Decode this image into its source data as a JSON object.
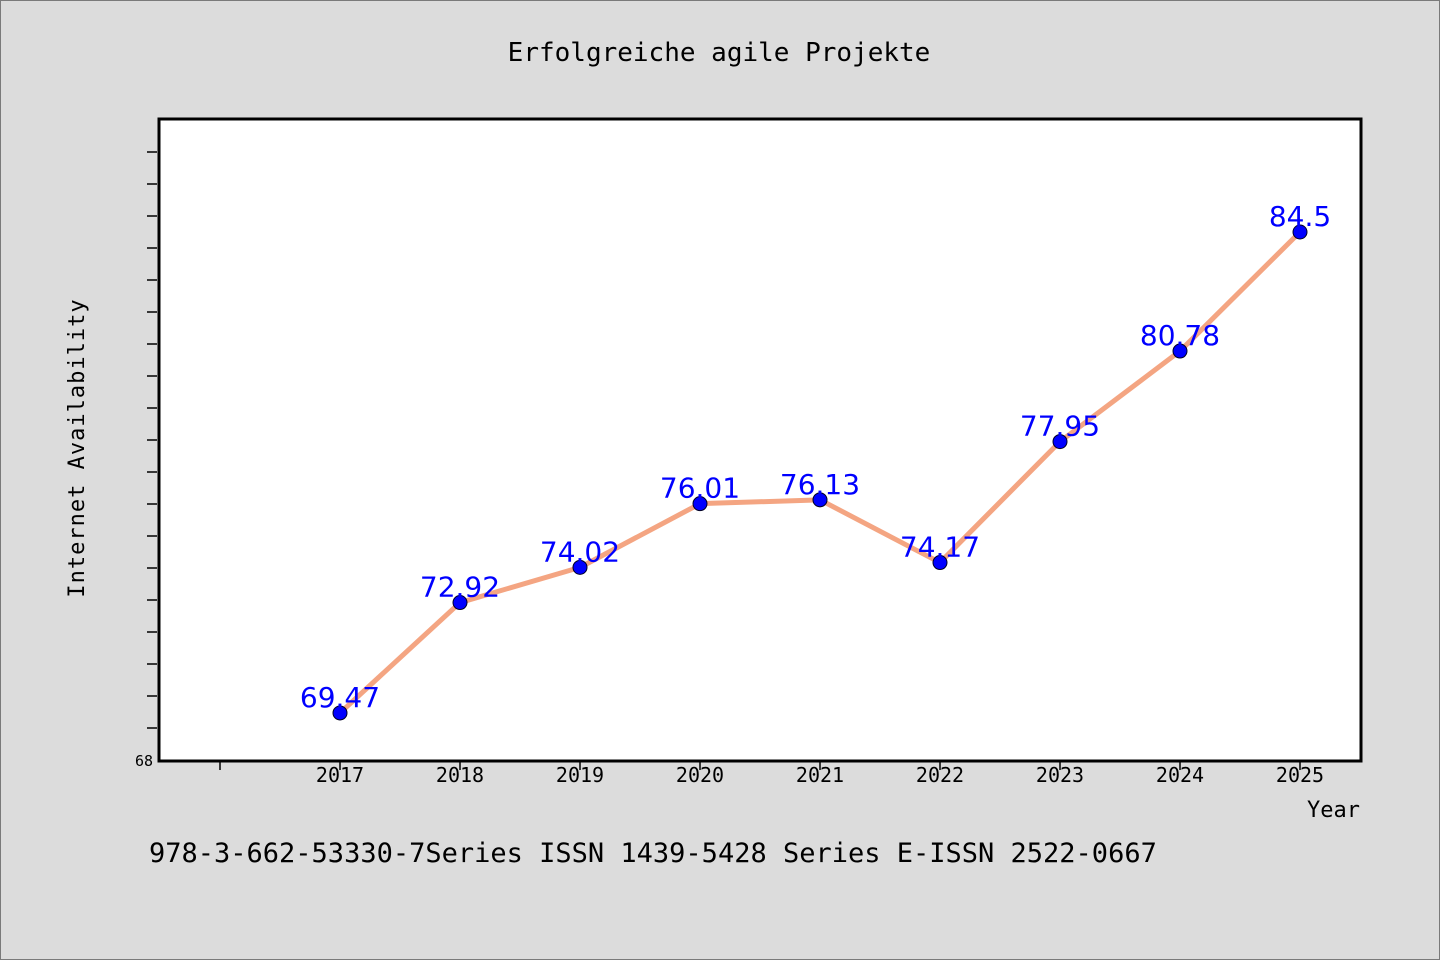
{
  "chart_data": {
    "type": "line",
    "title": "Erfolgreiche agile Projekte",
    "xlabel": "Year",
    "ylabel": "Internet Availability",
    "categories": [
      "2017",
      "2018",
      "2019",
      "2020",
      "2021",
      "2022",
      "2023",
      "2024",
      "2025"
    ],
    "series": [
      {
        "values": [
          69.47,
          72.92,
          74.02,
          76.01,
          76.13,
          74.17,
          77.95,
          80.78,
          84.5
        ],
        "data_labels": [
          "69.47",
          "72.92",
          "74.02",
          "76.01",
          "76.13",
          "74.17",
          "77.95",
          "80.78",
          "84.5"
        ],
        "line_color": "#f4a582",
        "marker_color": "#0000ff",
        "label_color": "#0000ff"
      }
    ],
    "ylim": [
      68,
      88
    ],
    "y_tick_labels": [
      "68"
    ],
    "grid": false,
    "legend": "none"
  },
  "footer": {
    "text": "978-3-662-53330-7Series ISSN 1439-5428 Series E-ISSN 2522-0667"
  },
  "colors": {
    "background": "#dcdcdc",
    "plot_background": "#ffffff",
    "axis": "#000000"
  }
}
